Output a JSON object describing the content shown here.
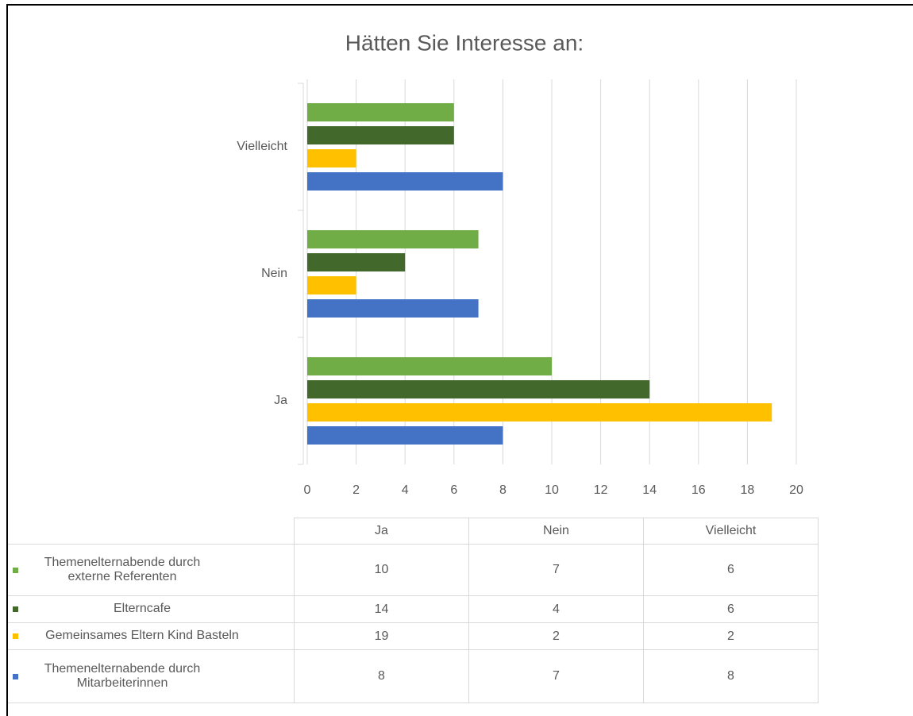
{
  "chart_data": {
    "type": "bar",
    "orientation": "horizontal",
    "title": "Hätten Sie Interesse an:",
    "categories": [
      "Ja",
      "Nein",
      "Vielleicht"
    ],
    "series": [
      {
        "name": "Themenelternabende durch externe Referenten",
        "color": "#70ad47",
        "values": [
          10,
          7,
          6
        ]
      },
      {
        "name": "Elterncafe",
        "color": "#43682b",
        "values": [
          14,
          4,
          6
        ]
      },
      {
        "name": "Gemeinsames Eltern Kind Basteln",
        "color": "#ffc000",
        "values": [
          19,
          2,
          2
        ]
      },
      {
        "name": "Themenelternabende durch Mitarbeiterinnen",
        "color": "#4472c4",
        "values": [
          8,
          7,
          8
        ]
      }
    ],
    "xlim": [
      0,
      20
    ],
    "xticks": [
      0,
      2,
      4,
      6,
      8,
      10,
      12,
      14,
      16,
      18,
      20
    ],
    "grid": true,
    "data_table": true
  }
}
